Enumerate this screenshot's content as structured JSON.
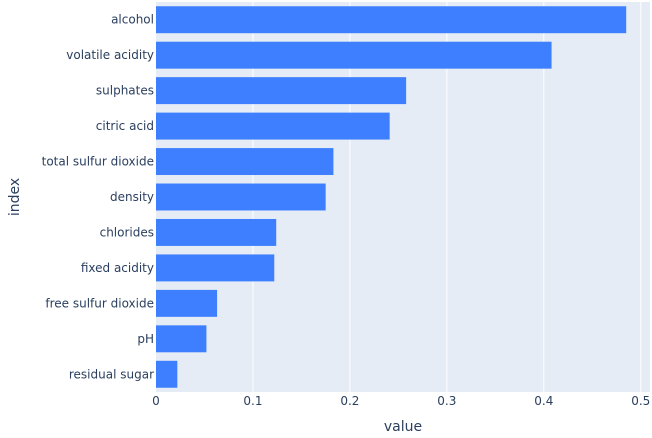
{
  "chart_data": {
    "type": "bar",
    "orientation": "horizontal",
    "categories": [
      "alcohol",
      "volatile acidity",
      "sulphates",
      "citric acid",
      "total sulfur dioxide",
      "density",
      "chlorides",
      "fixed acidity",
      "free sulfur dioxide",
      "pH",
      "residual sugar"
    ],
    "values": [
      0.485,
      0.408,
      0.258,
      0.241,
      0.183,
      0.175,
      0.124,
      0.122,
      0.063,
      0.052,
      0.022
    ],
    "xlabel": "value",
    "ylabel": "index",
    "xlim": [
      0,
      0.5
    ],
    "x_ticks": [
      "0",
      "0.1",
      "0.2",
      "0.3",
      "0.4",
      "0.5"
    ],
    "grid": true,
    "colors": {
      "bar": "#3d7fff",
      "plot_background": "#e5ecf6",
      "gridline": "#ffffff",
      "text": "#2a3f5f"
    }
  }
}
